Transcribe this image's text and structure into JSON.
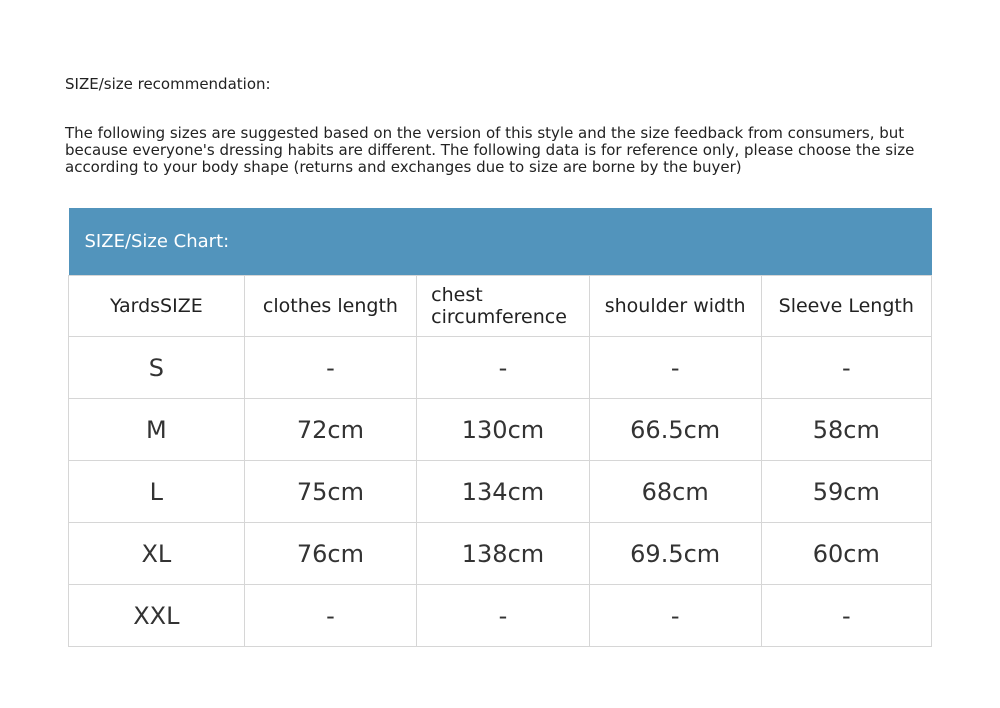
{
  "title": "SIZE/size recommendation:",
  "description": "The following sizes are suggested based on the version of this style and the size feedback from consumers, but because everyone's dressing habits are different. The following data is for reference only, please choose the size according to your body shape (returns and exchanges due to size are borne by the buyer)",
  "table": {
    "banner": "SIZE/Size Chart:",
    "banner_color": "#5294bc",
    "headers": [
      "YardsSIZE",
      "clothes length",
      "chest circumference",
      "shoulder width",
      "Sleeve Length"
    ],
    "rows": [
      [
        "S",
        "-",
        "-",
        "-",
        "-"
      ],
      [
        "M",
        "72cm",
        "130cm",
        "66.5cm",
        "58cm"
      ],
      [
        "L",
        "75cm",
        "134cm",
        "68cm",
        "59cm"
      ],
      [
        "XL",
        "76cm",
        "138cm",
        "69.5cm",
        "60cm"
      ],
      [
        "XXL",
        "-",
        "-",
        "-",
        "-"
      ]
    ]
  }
}
